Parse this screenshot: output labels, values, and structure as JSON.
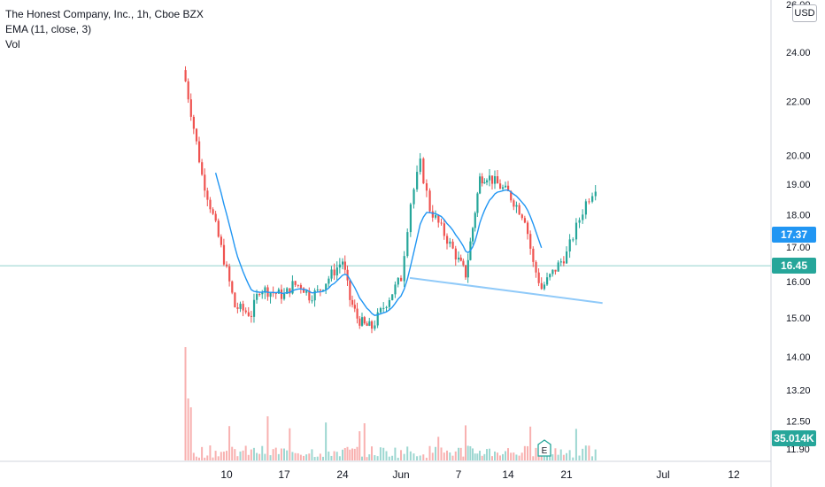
{
  "legend": {
    "symbol": "The Honest Company, Inc., 1h, Cboe BZX",
    "ema": "EMA (11, close, 3)",
    "vol": "Vol"
  },
  "currency": "USD",
  "price_tags": {
    "ema_value": "17.37",
    "last_price": "16.45",
    "volume_value": "35.014K"
  },
  "earnings_marker": "E",
  "colors": {
    "up": "#26a69a",
    "down": "#ef5350",
    "ema": "#2196f3",
    "trendline": "#90caf9",
    "last_price_tag": "#26a69a",
    "ema_tag": "#2196f3"
  },
  "chart_data": {
    "type": "candlestick",
    "title": "The Honest Company, Inc., 1h, Cboe BZX",
    "y_ticks": [
      "24.00",
      "22.00",
      "20.00",
      "19.00",
      "18.00",
      "17.00",
      "16.00",
      "15.00",
      "14.00",
      "13.20",
      "12.50",
      "11.90"
    ],
    "y_top_partial": "26.00",
    "x_ticks": [
      "10",
      "17",
      "24",
      "Jun",
      "7",
      "14",
      "21",
      "Jul",
      "12"
    ],
    "y_scale": "log",
    "ylim": [
      11.7,
      26.0
    ],
    "indicators": [
      "EMA (11, close, 3)",
      "Vol"
    ],
    "last_price": 16.45,
    "ema_last": 17.37,
    "close_path": [
      {
        "x": "May 5",
        "y": 22.8
      },
      {
        "x": "May 6",
        "y": 21.0
      },
      {
        "x": "May 7",
        "y": 19.3
      },
      {
        "x": "May 10",
        "y": 16.3
      },
      {
        "x": "May 11",
        "y": 15.3
      },
      {
        "x": "May 12",
        "y": 15.2
      },
      {
        "x": "May 13",
        "y": 15.1
      },
      {
        "x": "May 14",
        "y": 15.8
      },
      {
        "x": "May 17",
        "y": 15.6
      },
      {
        "x": "May 18",
        "y": 15.9
      },
      {
        "x": "May 19",
        "y": 15.9
      },
      {
        "x": "May 20",
        "y": 15.6
      },
      {
        "x": "May 21",
        "y": 15.7
      },
      {
        "x": "May 24",
        "y": 16.6
      },
      {
        "x": "May 25",
        "y": 15.5
      },
      {
        "x": "May 26",
        "y": 15.0
      },
      {
        "x": "May 27",
        "y": 14.8
      },
      {
        "x": "May 28",
        "y": 14.75
      },
      {
        "x": "Jun 1",
        "y": 16.1
      },
      {
        "x": "Jun 2",
        "y": 18.4
      },
      {
        "x": "Jun 3",
        "y": 19.7
      },
      {
        "x": "Jun 4",
        "y": 18.2
      },
      {
        "x": "Jun 7",
        "y": 16.6
      },
      {
        "x": "Jun 8",
        "y": 16.2
      },
      {
        "x": "Jun 9",
        "y": 17.6
      },
      {
        "x": "Jun 10",
        "y": 19.2
      },
      {
        "x": "Jun 11",
        "y": 19.3
      },
      {
        "x": "Jun 14",
        "y": 18.7
      },
      {
        "x": "Jun 15",
        "y": 18.3
      },
      {
        "x": "Jun 16",
        "y": 17.9
      },
      {
        "x": "Jun 17",
        "y": 16.5
      },
      {
        "x": "Jun 18",
        "y": 15.8
      },
      {
        "x": "Jun 21",
        "y": 16.8
      },
      {
        "x": "Jun 22",
        "y": 17.6
      },
      {
        "x": "Jun 23",
        "y": 18.4
      },
      {
        "x": "Jun 24",
        "y": 18.95
      }
    ],
    "trendline": {
      "start": {
        "x": "Jun 1",
        "y": 16.1
      },
      "end": {
        "x": "Jun 24",
        "y": 15.4
      }
    },
    "volume_spike": "May 5"
  }
}
